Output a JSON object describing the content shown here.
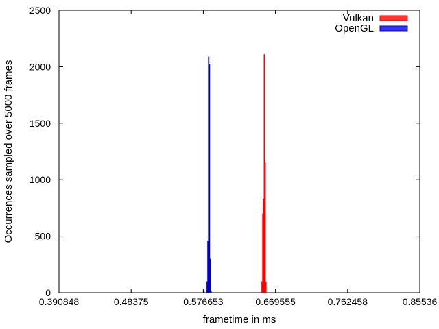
{
  "chart_data": {
    "type": "bar",
    "xlabel": "frametime in ms",
    "ylabel": "Occurrences sampled over 5000 frames",
    "xlim": [
      0.390848,
      0.85536
    ],
    "ylim": [
      0,
      2500
    ],
    "x_ticks": [
      "0.390848",
      "0.48375",
      "0.576653",
      "0.669555",
      "0.762458",
      "0.85536"
    ],
    "y_ticks": [
      "0",
      "500",
      "1000",
      "1500",
      "2000",
      "2500"
    ],
    "grid": false,
    "legend_position": "top-right",
    "series": [
      {
        "name": "Vulkan",
        "color": "#ff0000",
        "fill": "#ff3333",
        "points": [
          {
            "x": 0.6523,
            "y": 100
          },
          {
            "x": 0.6533,
            "y": 700
          },
          {
            "x": 0.6543,
            "y": 830
          },
          {
            "x": 0.6553,
            "y": 2110
          },
          {
            "x": 0.6563,
            "y": 1150
          },
          {
            "x": 0.6573,
            "y": 95
          }
        ]
      },
      {
        "name": "OpenGL",
        "color": "#0000cc",
        "fill": "#3333ff",
        "points": [
          {
            "x": 0.5776,
            "y": 10
          },
          {
            "x": 0.5806,
            "y": 15
          },
          {
            "x": 0.5816,
            "y": 100
          },
          {
            "x": 0.5826,
            "y": 460
          },
          {
            "x": 0.5836,
            "y": 2090
          },
          {
            "x": 0.5846,
            "y": 2020
          },
          {
            "x": 0.5856,
            "y": 300
          },
          {
            "x": 0.5866,
            "y": 15
          }
        ]
      }
    ]
  }
}
